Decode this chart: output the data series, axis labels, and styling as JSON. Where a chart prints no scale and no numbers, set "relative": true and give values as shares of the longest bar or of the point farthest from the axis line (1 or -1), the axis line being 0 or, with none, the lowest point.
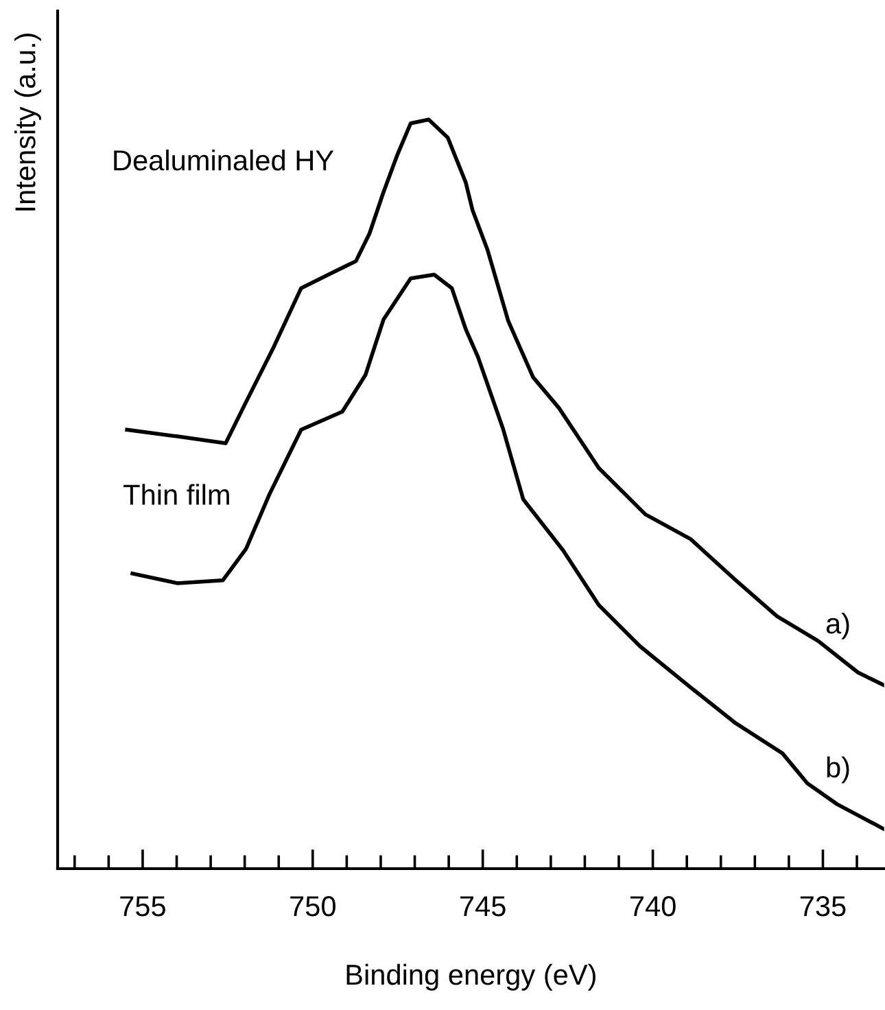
{
  "chart_data": {
    "type": "line",
    "relative": true,
    "xlabel": "Binding energy (eV)",
    "ylabel": "Intensity (a.u.)",
    "xlim": [
      757.5,
      733.2
    ],
    "xticks": [
      {
        "value": 757,
        "label": null
      },
      {
        "value": 756,
        "label": null
      },
      755,
      {
        "value": 754,
        "label": null
      },
      {
        "value": 753,
        "label": null
      },
      {
        "value": 752,
        "label": null
      },
      {
        "value": 751,
        "label": null
      },
      750,
      {
        "value": 749,
        "label": null
      },
      {
        "value": 748,
        "label": null
      },
      {
        "value": 747,
        "label": null
      },
      {
        "value": 746,
        "label": null
      },
      745,
      {
        "value": 744,
        "label": null
      },
      {
        "value": 743,
        "label": null
      },
      {
        "value": 742,
        "label": null
      },
      {
        "value": 741,
        "label": null
      },
      740,
      {
        "value": 739,
        "label": null
      },
      {
        "value": 738,
        "label": null
      },
      {
        "value": 737,
        "label": null
      },
      {
        "value": 736,
        "label": null
      },
      735,
      {
        "value": 734,
        "label": null
      }
    ],
    "grid": false,
    "legend": false,
    "marker": "none",
    "line_style": "solid",
    "series": [
      {
        "name": "Dealuminaled HY",
        "color": "#000000",
        "x": [
          755.46,
          753.97,
          752.56,
          751.96,
          751.15,
          750.34,
          749.54,
          748.73,
          748.33,
          747.92,
          747.52,
          747.12,
          746.59,
          746.03,
          745.5,
          745.3,
          744.86,
          744.25,
          743.52,
          742.76,
          741.59,
          740.22,
          738.89,
          737.56,
          736.35,
          735.14,
          733.97,
          733.21
        ],
        "values": [
          0.586,
          0.577,
          0.568,
          0.623,
          0.696,
          0.775,
          0.793,
          0.811,
          0.848,
          0.903,
          0.952,
          0.995,
          1.0,
          0.976,
          0.916,
          0.879,
          0.826,
          0.731,
          0.656,
          0.615,
          0.535,
          0.473,
          0.44,
          0.385,
          0.337,
          0.304,
          0.262,
          0.245
        ]
      },
      {
        "name": "Thin film",
        "color": "#000000",
        "x": [
          755.3,
          753.97,
          752.64,
          751.96,
          751.27,
          750.34,
          749.13,
          748.45,
          747.92,
          747.12,
          746.43,
          745.91,
          745.5,
          745.14,
          744.41,
          743.81,
          742.64,
          741.59,
          740.38,
          738.89,
          737.56,
          736.19,
          735.46,
          734.58,
          733.21
        ],
        "values": [
          0.394,
          0.381,
          0.385,
          0.427,
          0.5,
          0.586,
          0.61,
          0.659,
          0.733,
          0.788,
          0.793,
          0.775,
          0.72,
          0.683,
          0.588,
          0.493,
          0.425,
          0.352,
          0.297,
          0.242,
          0.194,
          0.154,
          0.114,
          0.086,
          0.053
        ]
      }
    ],
    "annotations": [
      "a)",
      "b)"
    ]
  }
}
